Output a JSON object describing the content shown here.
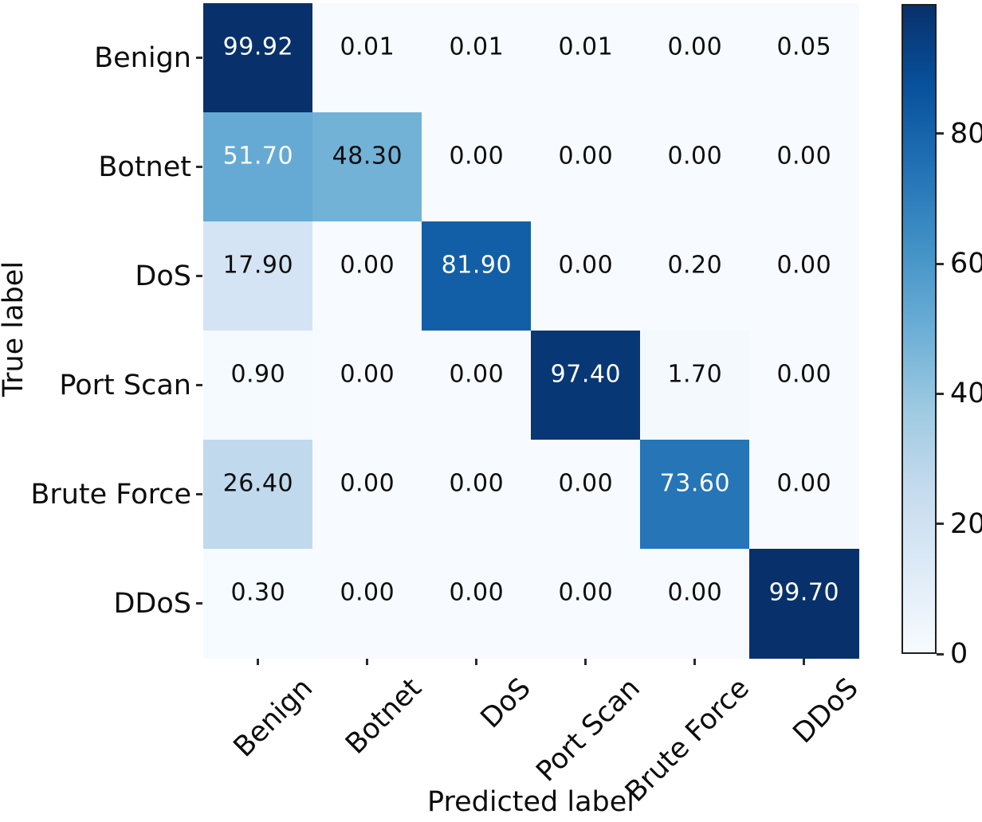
{
  "chart_data": {
    "type": "heatmap",
    "title": "",
    "xlabel": "Predicted label",
    "ylabel": "True label",
    "categories": [
      "Benign",
      "Botnet",
      "DoS",
      "Port Scan",
      "Brute Force",
      "DDoS"
    ],
    "matrix": [
      [
        "99.92",
        "0.01",
        "0.01",
        "0.01",
        "0.00",
        "0.05"
      ],
      [
        "51.70",
        "48.30",
        "0.00",
        "0.00",
        "0.00",
        "0.00"
      ],
      [
        "17.90",
        "0.00",
        "81.90",
        "0.00",
        "0.20",
        "0.00"
      ],
      [
        "0.90",
        "0.00",
        "0.00",
        "97.40",
        "1.70",
        "0.00"
      ],
      [
        "26.40",
        "0.00",
        "0.00",
        "0.00",
        "73.60",
        "0.00"
      ],
      [
        "0.30",
        "0.00",
        "0.00",
        "0.00",
        "0.00",
        "99.70"
      ]
    ],
    "vmin": 0,
    "vmax": 99.92,
    "text_threshold": 50,
    "colorbar_ticks": [
      0,
      20,
      40,
      60,
      80
    ],
    "colormap": {
      "name": "Blues",
      "stops": [
        [
          0.0,
          "#f7fbff"
        ],
        [
          0.125,
          "#deebf7"
        ],
        [
          0.25,
          "#c6dbef"
        ],
        [
          0.375,
          "#9ecae1"
        ],
        [
          0.5,
          "#6baed6"
        ],
        [
          0.625,
          "#4292c6"
        ],
        [
          0.75,
          "#2171b5"
        ],
        [
          0.875,
          "#08519c"
        ],
        [
          1.0,
          "#08306b"
        ]
      ]
    },
    "colors": {
      "cell_text_dark": "#0d0d0d",
      "cell_text_light": "#ffffff",
      "tick_mark": "#2b2b2b",
      "colorbar_border": "#1f1f1f"
    },
    "legend_position": "right-colorbar",
    "grid": false
  }
}
